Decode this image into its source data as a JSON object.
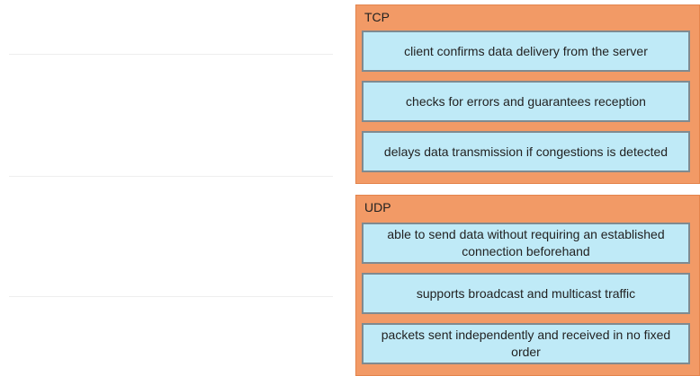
{
  "tcp_group": {
    "title": "TCP",
    "items": [
      "client confirms data delivery from the server",
      "checks for errors and guarantees reception",
      "delays data transmission if congestions is detected"
    ]
  },
  "udp_group": {
    "title": "UDP",
    "items": [
      "able to send data without requiring an established connection beforehand",
      "supports broadcast and multicast traffic",
      "packets sent independently and received in no fixed order"
    ]
  },
  "colors": {
    "group_background": "#f29a66",
    "item_background": "#bfeaf7",
    "item_border": "#7f8a90"
  }
}
